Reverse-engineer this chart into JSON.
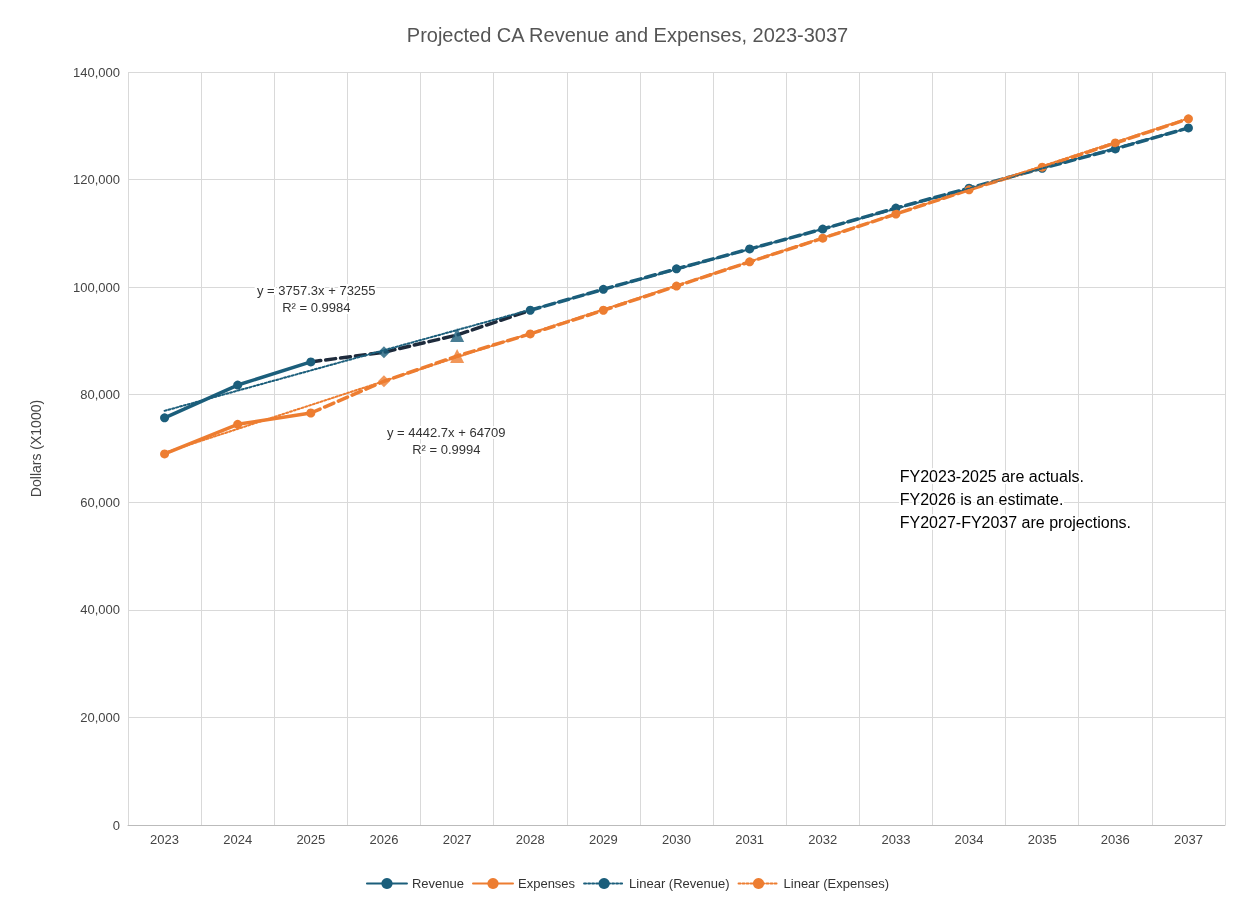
{
  "chart_data": {
    "type": "line",
    "title": "Projected CA Revenue and Expenses, 2023-3037",
    "ylabel": "Dollars (X1000)",
    "categories": [
      "2023",
      "2024",
      "2025",
      "2026",
      "2027",
      "2028",
      "2029",
      "2030",
      "2031",
      "2032",
      "2033",
      "2034",
      "2035",
      "2036",
      "2037"
    ],
    "ylim": [
      0,
      140000
    ],
    "yticks": [
      {
        "value": 0,
        "label": "0"
      },
      {
        "value": 20000,
        "label": "20,000"
      },
      {
        "value": 40000,
        "label": "40,000"
      },
      {
        "value": 60000,
        "label": "60,000"
      },
      {
        "value": 80000,
        "label": "80,000"
      },
      {
        "value": 100000,
        "label": "100,000"
      },
      {
        "value": 120000,
        "label": "120,000"
      },
      {
        "value": 140000,
        "label": "140,000"
      }
    ],
    "grid": true,
    "legend": "bottom",
    "series": [
      {
        "name": "Revenue",
        "color": "#1b5e7b",
        "marker": "circle",
        "line_style": "solid",
        "values": [
          75700,
          81800,
          86100,
          null,
          null,
          null,
          null,
          null,
          null,
          null,
          null,
          null,
          null,
          null,
          null
        ]
      },
      {
        "color": "#1e2b3c",
        "marker": "none",
        "line_style": "dashed",
        "values": [
          null,
          null,
          86100,
          87900,
          91100,
          95700,
          null,
          null,
          null,
          null,
          null,
          null,
          null,
          null,
          null
        ]
      },
      {
        "color": "#1b5e7b",
        "marker": "circle",
        "line_style": "dashed",
        "values": [
          null,
          null,
          null,
          null,
          null,
          95700,
          99600,
          103400,
          107100,
          110800,
          114700,
          118400,
          122100,
          125700,
          129600
        ]
      },
      {
        "type": "scatter",
        "color": "#1b5e7b",
        "marker": "diamond",
        "values": [
          null,
          null,
          null,
          87900,
          null,
          null,
          null,
          null,
          null,
          null,
          null,
          null,
          null,
          null,
          null
        ]
      },
      {
        "type": "scatter",
        "color": "#1b5e7b",
        "marker": "triangle",
        "values": [
          null,
          null,
          null,
          null,
          91100,
          null,
          null,
          null,
          null,
          null,
          null,
          null,
          null,
          null,
          null
        ]
      },
      {
        "name": "Expenses",
        "color": "#ed7d31",
        "marker": "circle",
        "line_style": "solid",
        "values": [
          69000,
          74500,
          76600,
          null,
          null,
          null,
          null,
          null,
          null,
          null,
          null,
          null,
          null,
          null,
          null
        ]
      },
      {
        "color": "#ed7d31",
        "marker": "none",
        "line_style": "dashed",
        "values": [
          null,
          null,
          76600,
          82500,
          87200,
          91300,
          null,
          null,
          null,
          null,
          null,
          null,
          null,
          null,
          null
        ]
      },
      {
        "color": "#ed7d31",
        "marker": "circle",
        "line_style": "dashed",
        "values": [
          null,
          null,
          null,
          null,
          null,
          91300,
          95700,
          100200,
          104700,
          109100,
          113600,
          118100,
          122300,
          126800,
          131300
        ]
      },
      {
        "type": "scatter",
        "color": "#ed7d31",
        "marker": "diamond",
        "values": [
          null,
          null,
          null,
          82500,
          null,
          null,
          null,
          null,
          null,
          null,
          null,
          null,
          null,
          null,
          null
        ]
      },
      {
        "type": "scatter",
        "color": "#ed7d31",
        "marker": "triangle",
        "values": [
          null,
          null,
          null,
          null,
          87200,
          null,
          null,
          null,
          null,
          null,
          null,
          null,
          null,
          null,
          null
        ]
      },
      {
        "name": "Linear (Revenue)",
        "color": "#1b5e7b",
        "marker": "none",
        "line_style": "dotted",
        "values": [
          77000,
          null,
          null,
          null,
          null,
          null,
          null,
          null,
          null,
          null,
          null,
          null,
          null,
          null,
          129600
        ]
      },
      {
        "name": "Linear (Expenses)",
        "color": "#ed7d31",
        "marker": "none",
        "line_style": "dotted",
        "values": [
          69200,
          null,
          null,
          null,
          null,
          null,
          null,
          null,
          null,
          null,
          null,
          null,
          null,
          null,
          131400
        ]
      }
    ],
    "annotations": [
      "y = 3757.3x + 73255\nR² = 0.9984",
      "y = 4442.7x + 64709\nR² = 0.9994",
      "FY2023-2025 are actuals.\nFY2026 is an estimate.\nFY2027-FY2037 are projections."
    ]
  }
}
